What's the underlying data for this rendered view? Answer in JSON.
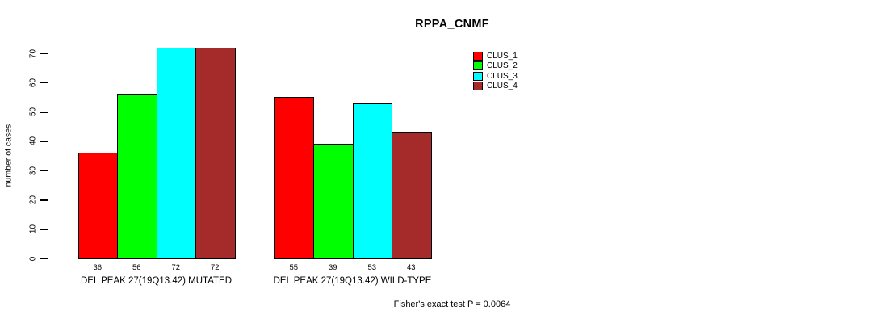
{
  "title": "RPPA_CNMF",
  "footer": "Fisher's exact test P = 0.0064",
  "chart_data": {
    "type": "bar",
    "title": "RPPA_CNMF",
    "xlabel": "",
    "ylabel": "number of cases",
    "ylim": [
      0,
      70
    ],
    "yticks": [
      0,
      10,
      20,
      30,
      40,
      50,
      60,
      70
    ],
    "grid": false,
    "legend_position": "top-right",
    "categories": [
      "DEL PEAK 27(19Q13.42) MUTATED",
      "DEL PEAK 27(19Q13.42) WILD-TYPE"
    ],
    "series": [
      {
        "name": "CLUS_1",
        "color": "#ff0000",
        "values": [
          36,
          55
        ]
      },
      {
        "name": "CLUS_2",
        "color": "#00ff00",
        "values": [
          56,
          39
        ]
      },
      {
        "name": "CLUS_3",
        "color": "#00ffff",
        "values": [
          72,
          53
        ]
      },
      {
        "name": "CLUS_4",
        "color": "#a52a2a",
        "values": [
          72,
          43
        ]
      }
    ],
    "bar_value_labels": [
      [
        "36",
        "56",
        "72",
        "72"
      ],
      [
        "55",
        "39",
        "53",
        "43"
      ]
    ],
    "annotation": "Fisher's exact test P = 0.0064",
    "axis_color": "#000000",
    "background_color": "#ffffff"
  }
}
